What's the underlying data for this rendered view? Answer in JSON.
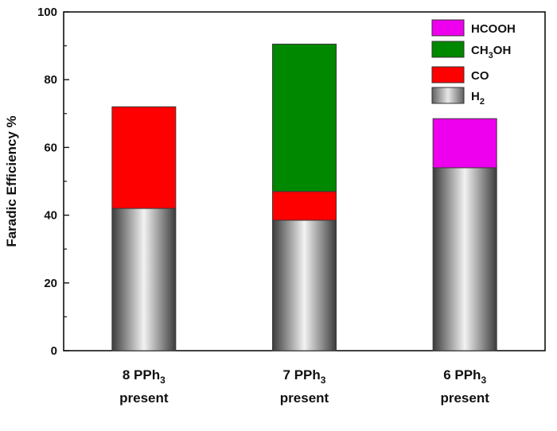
{
  "chart_data": {
    "type": "bar",
    "stacked": true,
    "ylabel": "Faradic Efficiency %",
    "ylim": [
      0,
      100
    ],
    "yticks": [
      0,
      20,
      40,
      60,
      80,
      100
    ],
    "categories": [
      {
        "main": "8 PPh",
        "sub": "3",
        "line2": "present"
      },
      {
        "main": "7 PPh",
        "sub": "3",
        "line2": "present"
      },
      {
        "main": "6 PPh",
        "sub": "3",
        "line2": "present"
      }
    ],
    "series": [
      {
        "key": "H2",
        "label": "H",
        "label_sub": "2",
        "label_rest": "",
        "color": "#bdbdbd",
        "values": [
          42,
          38.5,
          54
        ]
      },
      {
        "key": "CO",
        "label": "CO",
        "label_sub": "",
        "label_rest": "",
        "color": "#ff0000",
        "values": [
          30,
          8.5,
          0
        ]
      },
      {
        "key": "CH3OH",
        "label": "CH",
        "label_sub": "3",
        "label_rest": "OH",
        "color": "#008800",
        "values": [
          0,
          43.5,
          0
        ]
      },
      {
        "key": "HCOOH",
        "label": "HCOOH",
        "label_sub": "",
        "label_rest": "",
        "color": "#ee00ee",
        "values": [
          0,
          0,
          14.5
        ]
      }
    ],
    "legend_order": [
      "HCOOH",
      "CH3OH",
      "CO",
      "H2"
    ],
    "legend_position": "top-right",
    "grid": false
  }
}
